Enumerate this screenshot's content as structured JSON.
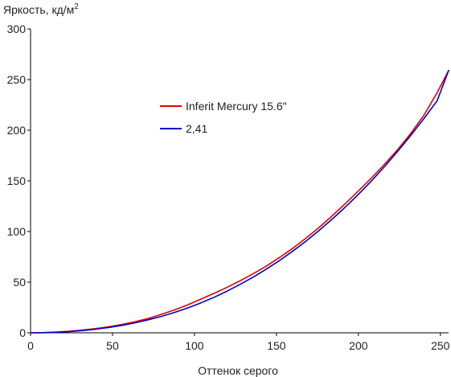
{
  "chart_data": {
    "type": "line",
    "title": "",
    "ylabel": "Яркость, кд/м",
    "ylabel_superscript": "2",
    "xlabel": "Оттенок серого",
    "xlim": [
      0,
      255
    ],
    "ylim": [
      0,
      300
    ],
    "x_ticks": [
      0,
      50,
      100,
      150,
      200,
      250
    ],
    "y_ticks": [
      0,
      50,
      100,
      150,
      200,
      250,
      300
    ],
    "grid": false,
    "legend_position": "center",
    "series": [
      {
        "name": "Inferit Mercury 15.6\"",
        "color": "#e00000",
        "points": [
          [
            0,
            0
          ],
          [
            8,
            0.2
          ],
          [
            16,
            0.8
          ],
          [
            24,
            1.6
          ],
          [
            32,
            2.7
          ],
          [
            40,
            4.2
          ],
          [
            48,
            6.0
          ],
          [
            56,
            8.3
          ],
          [
            64,
            11.0
          ],
          [
            72,
            14.3
          ],
          [
            80,
            18.3
          ],
          [
            88,
            22.7
          ],
          [
            96,
            27.7
          ],
          [
            104,
            33.3
          ],
          [
            112,
            39.0
          ],
          [
            120,
            45.0
          ],
          [
            128,
            51.5
          ],
          [
            136,
            58.5
          ],
          [
            144,
            66.0
          ],
          [
            152,
            74.5
          ],
          [
            160,
            83.5
          ],
          [
            168,
            93.5
          ],
          [
            176,
            104.0
          ],
          [
            184,
            115.5
          ],
          [
            192,
            127.5
          ],
          [
            200,
            140.0
          ],
          [
            208,
            153.0
          ],
          [
            216,
            166.5
          ],
          [
            224,
            181.0
          ],
          [
            232,
            197.0
          ],
          [
            240,
            215.0
          ],
          [
            248,
            237.0
          ],
          [
            255,
            259.0
          ]
        ]
      },
      {
        "name": "2,41",
        "color": "#0000cc",
        "points": [
          [
            0,
            0
          ],
          [
            8,
            0.1
          ],
          [
            16,
            0.5
          ],
          [
            24,
            1.2
          ],
          [
            32,
            2.2
          ],
          [
            40,
            3.6
          ],
          [
            48,
            5.3
          ],
          [
            56,
            7.4
          ],
          [
            64,
            9.9
          ],
          [
            72,
            12.9
          ],
          [
            80,
            16.3
          ],
          [
            88,
            20.2
          ],
          [
            96,
            24.6
          ],
          [
            104,
            29.6
          ],
          [
            112,
            35.1
          ],
          [
            120,
            41.2
          ],
          [
            128,
            47.9
          ],
          [
            136,
            55.1
          ],
          [
            144,
            63.0
          ],
          [
            152,
            71.5
          ],
          [
            160,
            80.7
          ],
          [
            168,
            90.5
          ],
          [
            176,
            101.0
          ],
          [
            184,
            112.2
          ],
          [
            192,
            124.1
          ],
          [
            200,
            136.7
          ],
          [
            208,
            150.1
          ],
          [
            216,
            164.3
          ],
          [
            224,
            179.3
          ],
          [
            232,
            195.0
          ],
          [
            240,
            211.6
          ],
          [
            248,
            229.0
          ],
          [
            255,
            259.0
          ]
        ]
      }
    ]
  }
}
